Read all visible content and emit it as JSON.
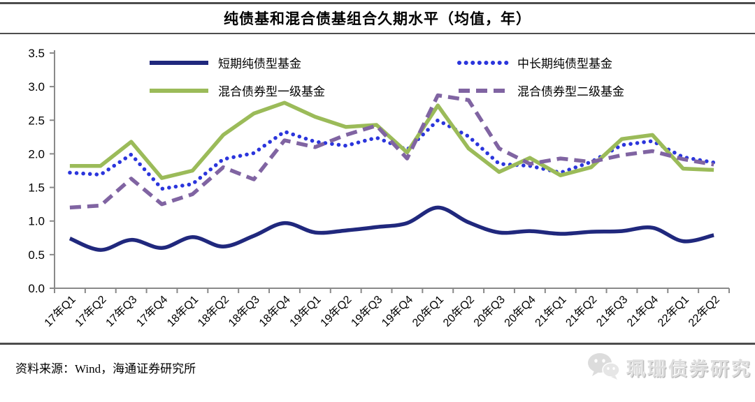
{
  "title": "纯债基和混合债基组合久期水平（均值，年）",
  "footer": {
    "source": "资料来源：Wind，海通证券研究所",
    "watermark": "珮珊债券研究"
  },
  "chart_data": {
    "type": "line",
    "title": "纯债基和混合债基组合久期水平（均值，年）",
    "xlabel": "",
    "ylabel": "",
    "ylim": [
      0,
      3.5
    ],
    "ytick_step": 0.5,
    "grid": false,
    "legend_position": "top",
    "axis_color": "#898989",
    "categories": [
      "17年Q1",
      "17年Q2",
      "17年Q3",
      "17年Q4",
      "18年Q1",
      "18年Q2",
      "18年Q3",
      "18年Q4",
      "19年Q1",
      "19年Q2",
      "19年Q3",
      "19年Q4",
      "20年Q1",
      "20年Q2",
      "20年Q3",
      "20年Q4",
      "21年Q1",
      "21年Q2",
      "21年Q3",
      "21年Q4",
      "22年Q1",
      "22年Q2"
    ],
    "series": [
      {
        "name": "短期纯债型基金",
        "color": "#20287d",
        "style": "solid",
        "smooth": true,
        "values": [
          0.74,
          0.57,
          0.72,
          0.6,
          0.76,
          0.62,
          0.78,
          0.97,
          0.83,
          0.86,
          0.91,
          0.97,
          1.2,
          0.98,
          0.83,
          0.85,
          0.81,
          0.84,
          0.85,
          0.9,
          0.7,
          0.79
        ]
      },
      {
        "name": "中长期纯债型基金",
        "color": "#2b35dc",
        "style": "dotted",
        "smooth": false,
        "values": [
          1.72,
          1.69,
          1.99,
          1.48,
          1.55,
          1.92,
          2.01,
          2.33,
          2.18,
          2.12,
          2.24,
          2.06,
          2.5,
          2.26,
          1.85,
          1.82,
          1.72,
          1.88,
          2.13,
          2.19,
          1.95,
          1.87
        ]
      },
      {
        "name": "混合债券型一级基金",
        "color": "#9bbb59",
        "style": "solid",
        "smooth": false,
        "values": [
          1.82,
          1.82,
          2.18,
          1.64,
          1.75,
          2.28,
          2.6,
          2.76,
          2.55,
          2.4,
          2.43,
          2.02,
          2.72,
          2.08,
          1.73,
          1.94,
          1.68,
          1.8,
          2.22,
          2.28,
          1.78,
          1.76
        ]
      },
      {
        "name": "混合债券型二级基金",
        "color": "#8064a2",
        "style": "dashed",
        "smooth": false,
        "values": [
          1.2,
          1.23,
          1.63,
          1.25,
          1.4,
          1.8,
          1.62,
          2.2,
          2.1,
          2.28,
          2.42,
          1.93,
          2.87,
          2.8,
          2.08,
          1.85,
          1.93,
          1.88,
          1.98,
          2.04,
          1.92,
          1.84
        ]
      }
    ]
  }
}
